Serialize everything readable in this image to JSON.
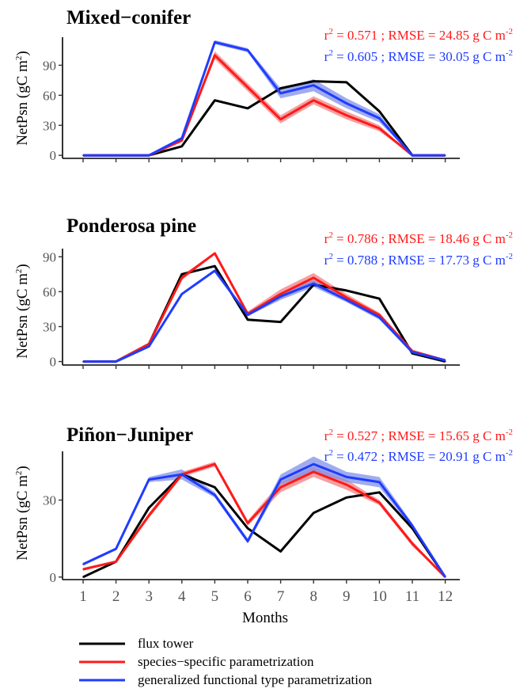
{
  "colors": {
    "flux": "#000000",
    "species": "#ff1a1a",
    "generalized": "#1f3cff",
    "species_band": "#f08080",
    "generalized_band": "#8090e8"
  },
  "ylabel": {
    "main": "NetPsn (gC m",
    "sup": "2",
    "close": ")"
  },
  "xlabel": "Months",
  "months": [
    "1",
    "2",
    "3",
    "4",
    "5",
    "6",
    "7",
    "8",
    "9",
    "10",
    "11",
    "12"
  ],
  "legend": [
    {
      "label": "flux tower",
      "color": "#000000"
    },
    {
      "label": "species−specific parametrization",
      "color": "#ff1a1a"
    },
    {
      "label": "generalized functional type parametrization",
      "color": "#1f3cff"
    }
  ],
  "chart_data": [
    {
      "type": "line",
      "title": "Mixed−conifer",
      "ylim": [
        -3,
        118
      ],
      "yticks": [
        0,
        30,
        60,
        90
      ],
      "show_xtick_labels": false,
      "stats": [
        {
          "r2": "0.571",
          "rmse": "24.85",
          "unit": "g C m",
          "unit_sup": "-2",
          "color": "#ff1a1a"
        },
        {
          "r2": "0.605",
          "rmse": "30.05",
          "unit": "g C m",
          "unit_sup": "-2",
          "color": "#1f3cff"
        }
      ],
      "x": [
        1,
        2,
        3,
        4,
        5,
        6,
        7,
        8,
        9,
        10,
        11,
        12
      ],
      "series": [
        {
          "name": "flux tower",
          "key": "flux",
          "values": [
            0,
            0,
            0,
            9,
            55,
            47,
            67,
            74,
            73,
            44,
            0,
            0
          ]
        },
        {
          "name": "species−specific parametrization",
          "key": "species",
          "values": [
            0,
            0,
            0,
            15,
            100,
            68,
            36,
            55,
            40,
            27,
            0,
            0
          ],
          "band": [
            0,
            0,
            0,
            2,
            4,
            4,
            4,
            4,
            4,
            3,
            0,
            0
          ]
        },
        {
          "name": "generalized functional type parametrization",
          "key": "generalized",
          "values": [
            0,
            0,
            0,
            17,
            113,
            105,
            62,
            70,
            52,
            37,
            0,
            0
          ],
          "band": [
            0,
            0,
            0,
            2,
            2,
            2,
            5,
            6,
            5,
            4,
            0,
            0
          ]
        }
      ]
    },
    {
      "type": "line",
      "title": "Ponderosa pine",
      "ylim": [
        -3,
        97
      ],
      "yticks": [
        0,
        30,
        60,
        90
      ],
      "show_xtick_labels": false,
      "stats": [
        {
          "r2": "0.786",
          "rmse": "18.46",
          "unit": "g C m",
          "unit_sup": "-2",
          "color": "#ff1a1a"
        },
        {
          "r2": "0.788",
          "rmse": "17.73",
          "unit": "g C m",
          "unit_sup": "-2",
          "color": "#1f3cff"
        }
      ],
      "x": [
        1,
        2,
        3,
        4,
        5,
        6,
        7,
        8,
        9,
        10,
        11,
        12
      ],
      "series": [
        {
          "name": "flux tower",
          "key": "flux",
          "values": [
            0,
            0,
            15,
            75,
            82,
            36,
            34,
            66,
            61,
            54,
            7,
            0
          ]
        },
        {
          "name": "species−specific parametrization",
          "key": "species",
          "values": [
            0,
            0,
            15,
            72,
            93,
            41,
            58,
            72,
            55,
            40,
            9,
            1
          ],
          "band": [
            0,
            0,
            1,
            2,
            1,
            2,
            4,
            4,
            3,
            2,
            1,
            0
          ]
        },
        {
          "name": "generalized functional type parametrization",
          "key": "generalized",
          "values": [
            0,
            0,
            13,
            58,
            78,
            40,
            56,
            67,
            53,
            38,
            8,
            1
          ],
          "band": [
            0,
            0,
            1,
            1,
            1,
            1,
            3,
            3,
            2,
            2,
            1,
            0
          ]
        }
      ]
    },
    {
      "type": "line",
      "title": "Piñon−Juniper",
      "ylim": [
        -1,
        49
      ],
      "yticks": [
        0,
        30
      ],
      "show_xtick_labels": true,
      "stats": [
        {
          "r2": "0.527",
          "rmse": "15.65",
          "unit": "g C m",
          "unit_sup": "-2",
          "color": "#ff1a1a"
        },
        {
          "r2": "0.472",
          "rmse": "20.91",
          "unit": "g C m",
          "unit_sup": "-2",
          "color": "#1f3cff"
        }
      ],
      "x": [
        1,
        2,
        3,
        4,
        5,
        6,
        7,
        8,
        9,
        10,
        11,
        12
      ],
      "series": [
        {
          "name": "flux tower",
          "key": "flux",
          "values": [
            0,
            6,
            27,
            40,
            35,
            19,
            10,
            25,
            31,
            33,
            19,
            0
          ]
        },
        {
          "name": "species−specific parametrization",
          "key": "species",
          "values": [
            3,
            6,
            24,
            40,
            44,
            21,
            35,
            41,
            36,
            29,
            13,
            0
          ],
          "band": [
            0.5,
            0.5,
            1,
            1,
            1,
            1,
            2,
            2,
            2,
            1,
            1,
            0
          ]
        },
        {
          "name": "generalized functional type parametrization",
          "key": "generalized",
          "values": [
            5,
            11,
            38,
            40,
            32,
            14,
            38,
            44,
            39,
            37,
            20,
            0
          ],
          "band": [
            0.5,
            0.5,
            1,
            2,
            1,
            1,
            2,
            3,
            2,
            2,
            1,
            0
          ]
        }
      ]
    }
  ]
}
